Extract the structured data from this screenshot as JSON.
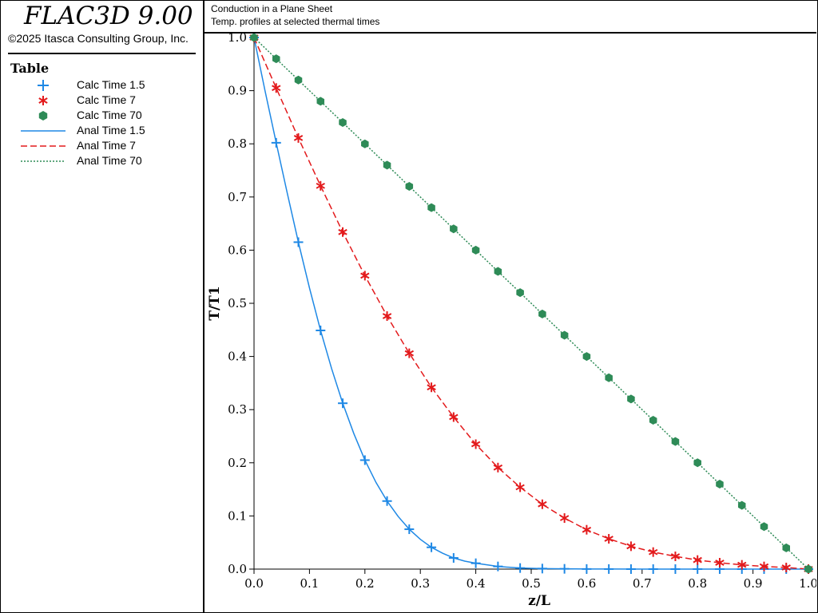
{
  "app": {
    "title": "FLAC3D 9.00",
    "copyright": "©2025 Itasca Consulting Group, Inc."
  },
  "legend": {
    "title": "Table",
    "items": [
      {
        "label": "Calc Time 1.5",
        "symbol": "plus",
        "color": "#1e88e5"
      },
      {
        "label": "Calc Time 7",
        "symbol": "asterisk",
        "color": "#e31a1c"
      },
      {
        "label": "Calc Time 70",
        "symbol": "hexagon",
        "color": "#2e8b57"
      },
      {
        "label": "Anal Time 1.5",
        "symbol": "solid-line",
        "color": "#1e88e5"
      },
      {
        "label": "Anal Time 7",
        "symbol": "dashed-line",
        "color": "#e31a1c"
      },
      {
        "label": "Anal Time 70",
        "symbol": "dotted-line",
        "color": "#2e8b57"
      }
    ]
  },
  "header": {
    "line1": "Conduction in a Plane Sheet",
    "line2": "Temp. profiles at selected thermal times"
  },
  "chart_data": {
    "type": "line",
    "xlabel": "z/L",
    "ylabel": "T/T1",
    "xlim": [
      0,
      1
    ],
    "ylim": [
      0,
      1
    ],
    "xticks": [
      "0.0",
      "0.1",
      "0.2",
      "0.3",
      "0.4",
      "0.5",
      "0.6",
      "0.7",
      "0.8",
      "0.9",
      "1.0"
    ],
    "yticks": [
      "0.0",
      "0.1",
      "0.2",
      "0.3",
      "0.4",
      "0.5",
      "0.6",
      "0.7",
      "0.8",
      "0.9",
      "1.0"
    ],
    "grid": false,
    "series": [
      {
        "name": "Calc Time 1.5",
        "kind": "marker",
        "marker": "plus",
        "color": "#1e88e5",
        "x": [
          0,
          0.04,
          0.08,
          0.12,
          0.16,
          0.2,
          0.24,
          0.28,
          0.32,
          0.36,
          0.4,
          0.44,
          0.48,
          0.52,
          0.56,
          0.6,
          0.64,
          0.68,
          0.72,
          0.76,
          0.8,
          0.84,
          0.88,
          0.92,
          0.96,
          1.0
        ],
        "y": [
          1.0,
          0.802,
          0.615,
          0.449,
          0.312,
          0.205,
          0.128,
          0.075,
          0.041,
          0.021,
          0.011,
          0.005,
          0.002,
          0.001,
          0.0005,
          0.0002,
          0.0001,
          0,
          0,
          0,
          0,
          0,
          0,
          0,
          0,
          0
        ]
      },
      {
        "name": "Calc Time 7",
        "kind": "marker",
        "marker": "asterisk",
        "color": "#e31a1c",
        "x": [
          0,
          0.04,
          0.08,
          0.12,
          0.16,
          0.2,
          0.24,
          0.28,
          0.32,
          0.36,
          0.4,
          0.44,
          0.48,
          0.52,
          0.56,
          0.6,
          0.64,
          0.68,
          0.72,
          0.76,
          0.8,
          0.84,
          0.88,
          0.92,
          0.96,
          1.0
        ],
        "y": [
          1.0,
          0.905,
          0.811,
          0.721,
          0.634,
          0.552,
          0.476,
          0.406,
          0.342,
          0.286,
          0.235,
          0.191,
          0.154,
          0.122,
          0.096,
          0.074,
          0.057,
          0.043,
          0.032,
          0.024,
          0.017,
          0.012,
          0.008,
          0.005,
          0.003,
          0.0
        ]
      },
      {
        "name": "Calc Time 70",
        "kind": "marker",
        "marker": "hexagon",
        "color": "#2e8b57",
        "x": [
          0,
          0.04,
          0.08,
          0.12,
          0.16,
          0.2,
          0.24,
          0.28,
          0.32,
          0.36,
          0.4,
          0.44,
          0.48,
          0.52,
          0.56,
          0.6,
          0.64,
          0.68,
          0.72,
          0.76,
          0.8,
          0.84,
          0.88,
          0.92,
          0.96,
          1.0
        ],
        "y": [
          1.0,
          0.96,
          0.92,
          0.88,
          0.84,
          0.8,
          0.76,
          0.72,
          0.68,
          0.64,
          0.6,
          0.56,
          0.52,
          0.48,
          0.44,
          0.4,
          0.36,
          0.32,
          0.28,
          0.24,
          0.2,
          0.16,
          0.12,
          0.08,
          0.04,
          0.0
        ]
      },
      {
        "name": "Anal Time 1.5",
        "kind": "line",
        "dash": "solid",
        "color": "#1e88e5",
        "x": [
          0,
          0.02,
          0.04,
          0.06,
          0.08,
          0.1,
          0.12,
          0.14,
          0.16,
          0.18,
          0.2,
          0.22,
          0.24,
          0.26,
          0.28,
          0.3,
          0.32,
          0.34,
          0.36,
          0.38,
          0.4,
          0.44,
          0.48,
          0.52,
          0.56,
          0.6,
          0.7,
          0.8,
          0.9,
          1.0
        ],
        "y": [
          1.0,
          0.899,
          0.802,
          0.707,
          0.615,
          0.529,
          0.449,
          0.377,
          0.312,
          0.255,
          0.205,
          0.163,
          0.128,
          0.099,
          0.075,
          0.056,
          0.041,
          0.03,
          0.021,
          0.015,
          0.011,
          0.005,
          0.002,
          0.001,
          0.0005,
          0.0002,
          0,
          0,
          0,
          0
        ]
      },
      {
        "name": "Anal Time 7",
        "kind": "line",
        "dash": "dashed",
        "color": "#e31a1c",
        "x": [
          0,
          0.04,
          0.08,
          0.12,
          0.16,
          0.2,
          0.24,
          0.28,
          0.32,
          0.36,
          0.4,
          0.44,
          0.48,
          0.52,
          0.56,
          0.6,
          0.64,
          0.68,
          0.72,
          0.76,
          0.8,
          0.84,
          0.88,
          0.92,
          0.96,
          1.0
        ],
        "y": [
          1.0,
          0.905,
          0.811,
          0.721,
          0.634,
          0.552,
          0.476,
          0.406,
          0.342,
          0.286,
          0.235,
          0.191,
          0.154,
          0.122,
          0.096,
          0.074,
          0.057,
          0.043,
          0.032,
          0.024,
          0.017,
          0.012,
          0.008,
          0.005,
          0.003,
          0.0
        ]
      },
      {
        "name": "Anal Time 70",
        "kind": "line",
        "dash": "dotted",
        "color": "#2e8b57",
        "x": [
          0,
          1.0
        ],
        "y": [
          1.0,
          0.0
        ]
      }
    ]
  }
}
